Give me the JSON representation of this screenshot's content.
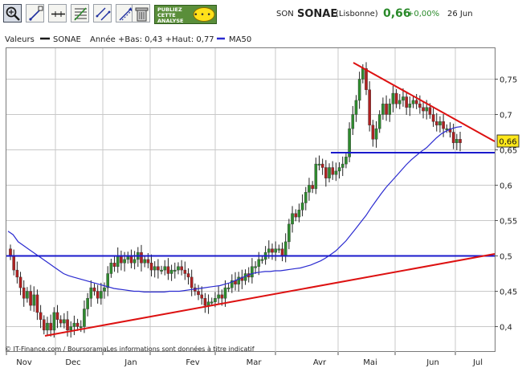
{
  "toolbar": {
    "tools": [
      {
        "icon": "zoom-icon"
      },
      {
        "icon": "pen-line-icon"
      },
      {
        "icon": "horizontal-line-icon"
      },
      {
        "icon": "fibonacci-icon"
      },
      {
        "icon": "parallel-lines-icon"
      },
      {
        "icon": "trend-arrow-icon"
      },
      {
        "icon": "trash-icon"
      }
    ],
    "promo_line1": "PUBLIEZ",
    "promo_line2": "CETTE",
    "promo_line3": "ANALYSE"
  },
  "header": {
    "prefix": "SON",
    "name": "SONAE",
    "market": "(Lisbonne)",
    "price": "0,66",
    "change": "+0,00%",
    "date": "26 Jun"
  },
  "legend": {
    "valeurs_label": "Valeurs",
    "symbol": "SONAE",
    "info": "Année +Bas: 0,43 +Haut: 0,77",
    "ma_label": "MA50"
  },
  "footer": {
    "copyright": "© IT-Finance.com / BoursoramaLes informations sont données à titre indicatif"
  },
  "price_badge": "0,66",
  "colors": {
    "candle_up": "#2e8b2e",
    "candle_down": "#b02020",
    "ma50": "#2b2bd0",
    "support": "#1a1acc",
    "trendline": "#dd1111",
    "badge": "#ffe81a",
    "grid": "#c8c8c8"
  },
  "chart_data": {
    "type": "candlestick",
    "title": "",
    "ylim": [
      0.38,
      0.8
    ],
    "yticks": [
      "0,75",
      "0,7",
      "0,65",
      "0,6",
      "0,55",
      "0,5",
      "0,45",
      "0,4"
    ],
    "ytick_values": [
      0.75,
      0.7,
      0.65,
      0.6,
      0.55,
      0.5,
      0.45,
      0.4
    ],
    "months": [
      "Nov",
      "Dec",
      "Jan",
      "Fev",
      "Mar",
      "Avr",
      "Mai",
      "Jun",
      "Jul"
    ],
    "close": [
      0.5,
      0.48,
      0.47,
      0.455,
      0.44,
      0.45,
      0.43,
      0.445,
      0.42,
      0.41,
      0.395,
      0.405,
      0.395,
      0.42,
      0.41,
      0.405,
      0.41,
      0.395,
      0.4,
      0.405,
      0.4,
      0.4,
      0.425,
      0.44,
      0.455,
      0.45,
      0.44,
      0.45,
      0.455,
      0.475,
      0.49,
      0.485,
      0.5,
      0.49,
      0.495,
      0.5,
      0.49,
      0.495,
      0.505,
      0.49,
      0.495,
      0.49,
      0.48,
      0.485,
      0.48,
      0.48,
      0.485,
      0.475,
      0.48,
      0.48,
      0.485,
      0.48,
      0.475,
      0.47,
      0.455,
      0.45,
      0.445,
      0.44,
      0.43,
      0.435,
      0.435,
      0.44,
      0.445,
      0.44,
      0.455,
      0.455,
      0.465,
      0.46,
      0.47,
      0.465,
      0.475,
      0.47,
      0.485,
      0.485,
      0.495,
      0.495,
      0.505,
      0.51,
      0.505,
      0.51,
      0.51,
      0.5,
      0.52,
      0.545,
      0.56,
      0.555,
      0.565,
      0.575,
      0.59,
      0.6,
      0.595,
      0.63,
      0.63,
      0.625,
      0.61,
      0.625,
      0.615,
      0.62,
      0.625,
      0.63,
      0.64,
      0.68,
      0.7,
      0.72,
      0.75,
      0.765,
      0.735,
      0.685,
      0.665,
      0.68,
      0.7,
      0.715,
      0.7,
      0.715,
      0.73,
      0.715,
      0.72,
      0.725,
      0.71,
      0.715,
      0.72,
      0.715,
      0.71,
      0.705,
      0.71,
      0.7,
      0.69,
      0.685,
      0.69,
      0.68,
      0.68,
      0.675,
      0.66,
      0.665,
      0.66
    ],
    "support_level": 0.5,
    "resistance_level": 0.646,
    "ma50": [
      0.535,
      0.53,
      0.52,
      0.515,
      0.51,
      0.505,
      0.5,
      0.495,
      0.49,
      0.485,
      0.48,
      0.475,
      0.472,
      0.47,
      0.468,
      0.466,
      0.464,
      0.462,
      0.46,
      0.458,
      0.456,
      0.454,
      0.453,
      0.452,
      0.451,
      0.45,
      0.45,
      0.449,
      0.449,
      0.449,
      0.449,
      0.449,
      0.45,
      0.45,
      0.45,
      0.451,
      0.452,
      0.453,
      0.454,
      0.455,
      0.456,
      0.457,
      0.458,
      0.46,
      0.462,
      0.465,
      0.468,
      0.471,
      0.474,
      0.476,
      0.477,
      0.478,
      0.478,
      0.479,
      0.479,
      0.48,
      0.481,
      0.482,
      0.483,
      0.485,
      0.487,
      0.49,
      0.493,
      0.497,
      0.502,
      0.507,
      0.514,
      0.521,
      0.53,
      0.539,
      0.548,
      0.557,
      0.568,
      0.578,
      0.588,
      0.597,
      0.605,
      0.613,
      0.621,
      0.629,
      0.636,
      0.642,
      0.648,
      0.653,
      0.66,
      0.667,
      0.673,
      0.677,
      0.68,
      0.682,
      0.683
    ]
  }
}
